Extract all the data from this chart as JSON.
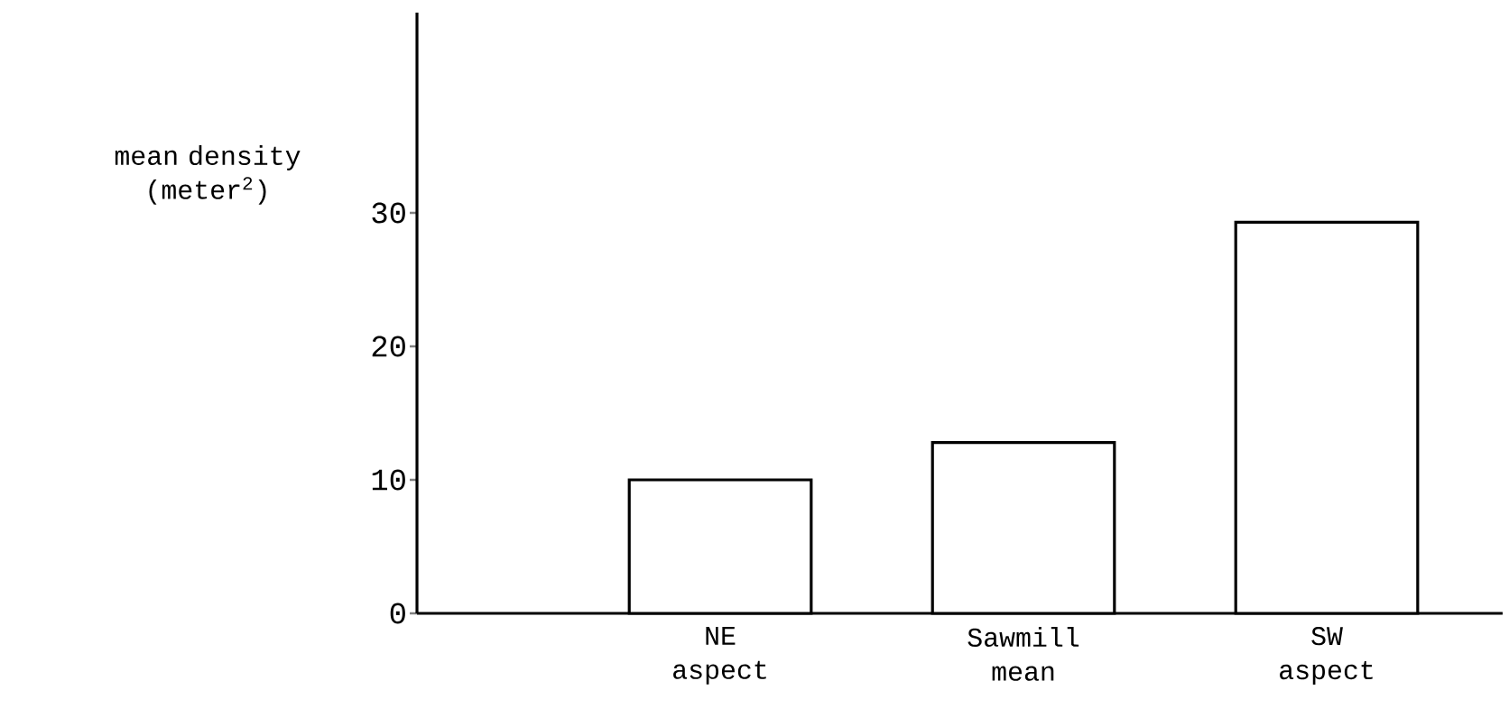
{
  "chart_data": {
    "type": "bar",
    "ylabel": "mean density (meter$^{2}$)",
    "categories": [
      "NE aspect",
      "Sawmill mean",
      "SW aspect"
    ],
    "values": [
      10,
      12.8,
      29.3
    ],
    "color": "#ffffff",
    "ylim": [
      0,
      45
    ],
    "yticks": [
      0,
      10,
      20,
      30
    ]
  }
}
